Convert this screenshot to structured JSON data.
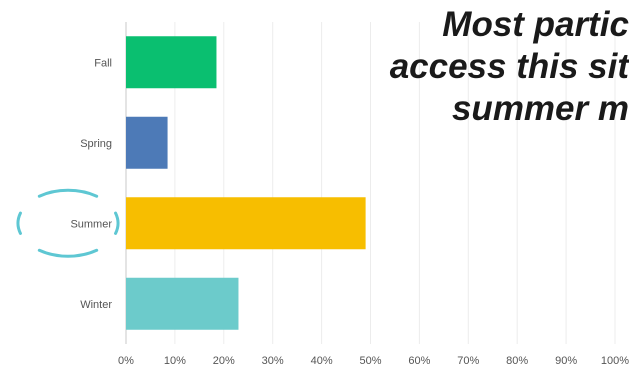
{
  "chart_data": {
    "type": "bar",
    "orientation": "horizontal",
    "categories": [
      "Fall",
      "Spring",
      "Summer",
      "Winter"
    ],
    "values": [
      18.5,
      8.5,
      49.0,
      23.0
    ],
    "xlim": [
      0,
      100
    ],
    "xticks": [
      "0%",
      "10%",
      "20%",
      "30%",
      "40%",
      "50%",
      "60%",
      "70%",
      "80%",
      "90%",
      "100%"
    ],
    "grid": true,
    "colors": [
      "#0abf70",
      "#4d7ab7",
      "#f7be00",
      "#6ccbcb"
    ],
    "highlighted_category": "Summer",
    "highlight_color": "#5ec7d3"
  },
  "annotation": {
    "lines": [
      "Most partic",
      "access this sit",
      "summer m"
    ]
  }
}
